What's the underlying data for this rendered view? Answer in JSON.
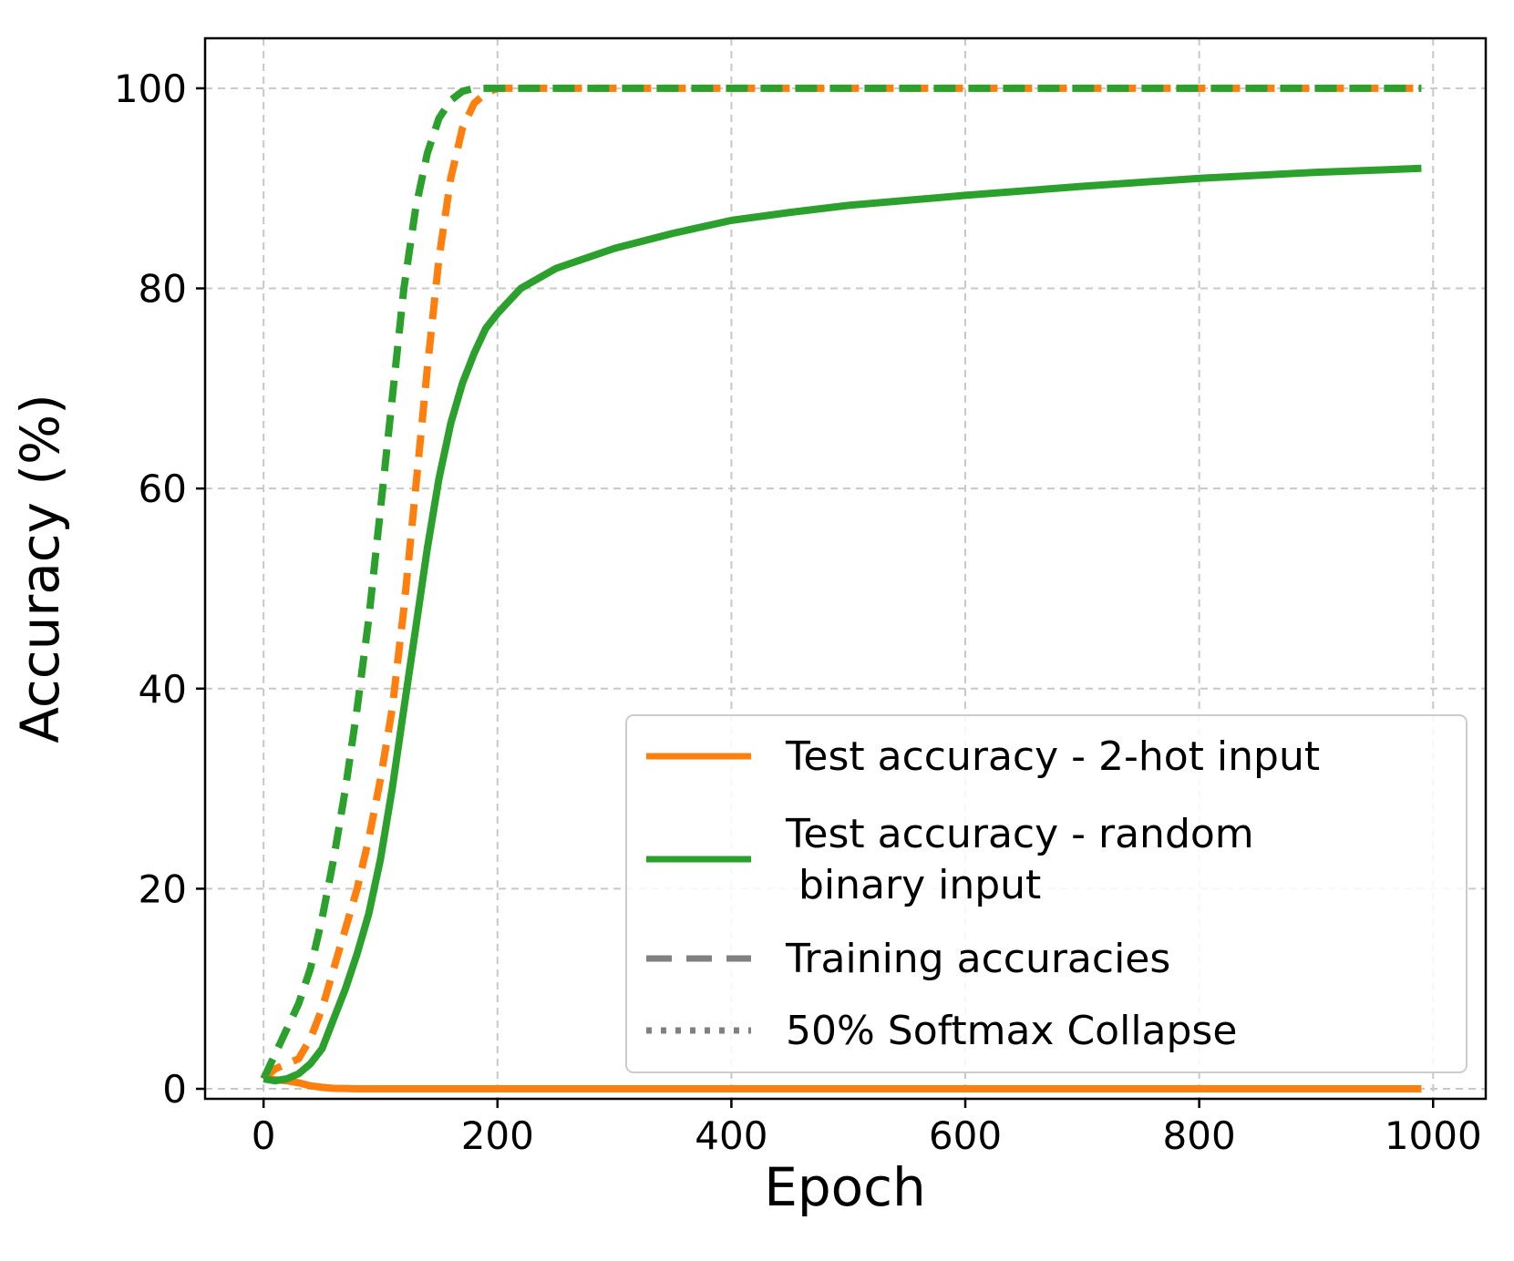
{
  "chart_data": {
    "type": "line",
    "title": "",
    "xlabel": "Epoch",
    "ylabel": "Accuracy (%)",
    "xlim": [
      -50,
      1045
    ],
    "ylim": [
      -1,
      105
    ],
    "xticks": [
      0,
      200,
      400,
      600,
      800,
      1000
    ],
    "yticks": [
      0,
      20,
      40,
      60,
      80,
      100
    ],
    "grid": true,
    "legend_position": "lower-right",
    "colors": {
      "orange": "#ff7f0e",
      "green": "#2ca02c",
      "gray": "#808080"
    },
    "legend": [
      {
        "label_lines": [
          "Test accuracy - 2-hot input"
        ],
        "color": "#ff7f0e",
        "style": "solid"
      },
      {
        "label_lines": [
          "Test accuracy - random",
          " binary input"
        ],
        "color": "#2ca02c",
        "style": "solid"
      },
      {
        "label_lines": [
          "Training accuracies"
        ],
        "color": "#808080",
        "style": "dashed"
      },
      {
        "label_lines": [
          "50% Softmax Collapse"
        ],
        "color": "#808080",
        "style": "dotted"
      }
    ],
    "series": [
      {
        "color": "#ff7f0e",
        "style": "dashed",
        "role": "training-2hot",
        "x": [
          0,
          10,
          20,
          30,
          40,
          50,
          60,
          70,
          80,
          90,
          100,
          110,
          120,
          130,
          140,
          150,
          160,
          170,
          180,
          190,
          200,
          250,
          300,
          400,
          500,
          600,
          700,
          800,
          900,
          990
        ],
        "y": [
          1,
          2,
          2.5,
          3,
          5,
          8,
          12,
          16,
          20,
          25,
          31,
          38,
          48,
          60,
          72,
          83,
          91,
          96,
          98.5,
          99.5,
          100,
          100,
          100,
          100,
          100,
          100,
          100,
          100,
          100,
          100
        ]
      },
      {
        "color": "#2ca02c",
        "style": "dashed",
        "role": "training-random-binary",
        "x": [
          0,
          10,
          20,
          30,
          40,
          50,
          60,
          70,
          80,
          90,
          100,
          110,
          120,
          130,
          140,
          150,
          160,
          170,
          180,
          190,
          200,
          250,
          300,
          400,
          500,
          600,
          700,
          800,
          900,
          990
        ],
        "y": [
          1,
          3.5,
          6,
          8.5,
          12,
          17,
          23,
          30,
          38,
          47,
          58,
          69,
          80,
          88,
          93.5,
          97,
          98.8,
          99.7,
          100,
          100,
          100,
          100,
          100,
          100,
          100,
          100,
          100,
          100,
          100,
          100
        ]
      },
      {
        "color": "#ff7f0e",
        "style": "solid",
        "role": "test-2hot",
        "x": [
          0,
          10,
          20,
          30,
          40,
          50,
          60,
          80,
          100,
          200,
          400,
          600,
          800,
          990
        ],
        "y": [
          1,
          0.9,
          0.8,
          0.6,
          0.3,
          0.15,
          0.05,
          0,
          0,
          0,
          0,
          0,
          0,
          0
        ]
      },
      {
        "color": "#2ca02c",
        "style": "solid",
        "role": "test-random-binary",
        "x": [
          0,
          10,
          20,
          30,
          40,
          50,
          60,
          70,
          80,
          90,
          100,
          110,
          120,
          130,
          140,
          150,
          160,
          170,
          180,
          190,
          200,
          220,
          250,
          300,
          350,
          400,
          450,
          500,
          600,
          700,
          800,
          900,
          990
        ],
        "y": [
          1,
          0.8,
          1,
          1.5,
          2.5,
          4,
          7,
          10,
          13.5,
          17.5,
          23,
          30,
          38,
          46,
          54,
          61,
          66.5,
          70.5,
          73.5,
          76,
          77.5,
          80,
          82,
          84,
          85.5,
          86.8,
          87.6,
          88.3,
          89.3,
          90.2,
          91,
          91.6,
          92
        ]
      }
    ]
  }
}
